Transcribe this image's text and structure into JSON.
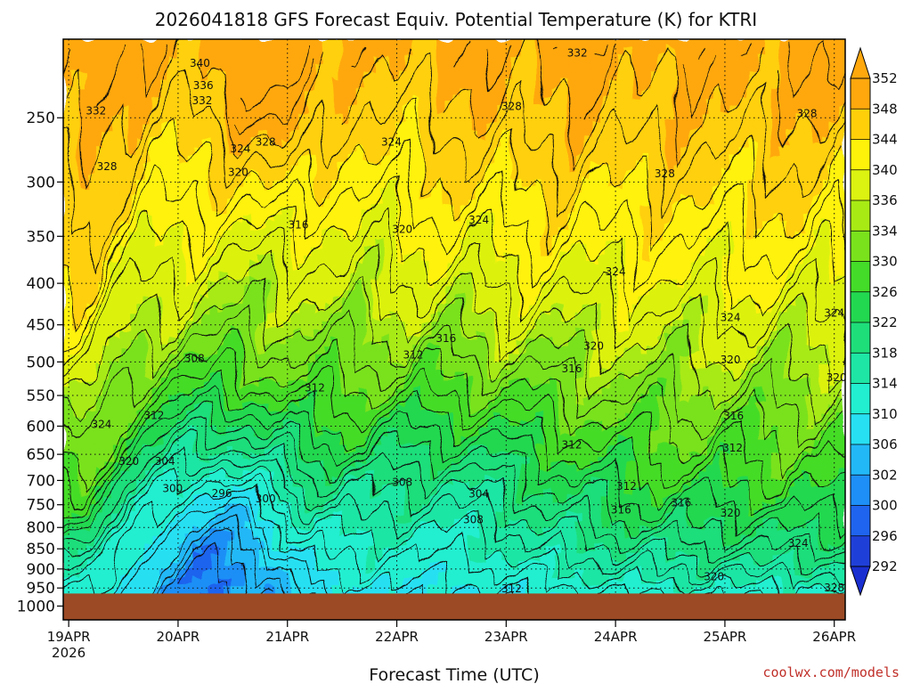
{
  "title": "2026041818 GFS Forecast Equiv. Potential Temperature (K) for KTRI",
  "credit": "coolwx.com/models",
  "colors": {
    "ground": "#9b4a25",
    "palette": [
      "#1f40d8",
      "#1f64ee",
      "#1e8ff6",
      "#22b8f7",
      "#27e0f2",
      "#22efd0",
      "#1ee6a4",
      "#1ede7a",
      "#22d850",
      "#44dc28",
      "#7ae21c",
      "#a8ea14",
      "#dcf210",
      "#fff20a",
      "#ffd00a",
      "#ffa80e"
    ]
  },
  "chart_data": {
    "type": "heatmap",
    "title": "2026041818 GFS Forecast Equiv. Potential Temperature (K) for KTRI",
    "xlabel": "Forecast Time (UTC)",
    "ylabel": "",
    "x_ticks": [
      {
        "label": "19APR",
        "label2": "2026",
        "day": 0
      },
      {
        "label": "20APR",
        "day": 1
      },
      {
        "label": "21APR",
        "day": 2
      },
      {
        "label": "22APR",
        "day": 3
      },
      {
        "label": "23APR",
        "day": 4
      },
      {
        "label": "24APR",
        "day": 5
      },
      {
        "label": "25APR",
        "day": 6
      },
      {
        "label": "26APR",
        "day": 7
      }
    ],
    "xlim_days": [
      -0.05,
      7.1
    ],
    "y_ticks": [
      250,
      300,
      350,
      400,
      450,
      500,
      550,
      600,
      650,
      700,
      750,
      800,
      850,
      900,
      950,
      1000
    ],
    "ylim_hpa": [
      200,
      1040
    ],
    "y_scale": "log",
    "ground_pressure_hpa": 965,
    "grid": "dotted",
    "colorbar": {
      "levels": [
        292,
        296,
        300,
        302,
        306,
        310,
        314,
        318,
        322,
        326,
        330,
        334,
        336,
        340,
        344,
        348,
        352
      ],
      "labels": [
        "352",
        "348",
        "344",
        "340",
        "336",
        "334",
        "330",
        "326",
        "322",
        "318",
        "314",
        "310",
        "306",
        "302",
        "300",
        "296",
        "292"
      ]
    },
    "contour_labels": [
      {
        "text": "340",
        "day": 1.2,
        "p": 214
      },
      {
        "text": "336",
        "day": 1.23,
        "p": 228
      },
      {
        "text": "332",
        "day": 1.22,
        "p": 238
      },
      {
        "text": "332",
        "day": 0.25,
        "p": 245
      },
      {
        "text": "328",
        "day": 1.8,
        "p": 268
      },
      {
        "text": "324",
        "day": 1.57,
        "p": 273
      },
      {
        "text": "328",
        "day": 0.35,
        "p": 287
      },
      {
        "text": "320",
        "day": 1.55,
        "p": 292
      },
      {
        "text": "332",
        "day": 4.65,
        "p": 208
      },
      {
        "text": "328",
        "day": 4.05,
        "p": 242
      },
      {
        "text": "324",
        "day": 2.95,
        "p": 268
      },
      {
        "text": "328",
        "day": 6.75,
        "p": 247
      },
      {
        "text": "328",
        "day": 5.45,
        "p": 293
      },
      {
        "text": "316",
        "day": 2.1,
        "p": 339
      },
      {
        "text": "320",
        "day": 3.05,
        "p": 343
      },
      {
        "text": "324",
        "day": 3.75,
        "p": 334
      },
      {
        "text": "324",
        "day": 5.0,
        "p": 387
      },
      {
        "text": "324",
        "day": 6.05,
        "p": 441
      },
      {
        "text": "324",
        "day": 7.0,
        "p": 435
      },
      {
        "text": "316",
        "day": 3.45,
        "p": 468
      },
      {
        "text": "320",
        "day": 4.8,
        "p": 478
      },
      {
        "text": "308",
        "day": 1.15,
        "p": 495
      },
      {
        "text": "312",
        "day": 3.15,
        "p": 490
      },
      {
        "text": "316",
        "day": 4.6,
        "p": 510
      },
      {
        "text": "320",
        "day": 6.05,
        "p": 497
      },
      {
        "text": "320",
        "day": 7.02,
        "p": 523
      },
      {
        "text": "312",
        "day": 2.25,
        "p": 538
      },
      {
        "text": "312",
        "day": 0.78,
        "p": 582
      },
      {
        "text": "316",
        "day": 6.08,
        "p": 583
      },
      {
        "text": "324",
        "day": 0.3,
        "p": 597
      },
      {
        "text": "312",
        "day": 4.6,
        "p": 633
      },
      {
        "text": "312",
        "day": 6.07,
        "p": 638
      },
      {
        "text": "320",
        "day": 0.55,
        "p": 663
      },
      {
        "text": "304",
        "day": 0.88,
        "p": 663
      },
      {
        "text": "300",
        "day": 0.95,
        "p": 716
      },
      {
        "text": "296",
        "day": 1.4,
        "p": 726
      },
      {
        "text": "300",
        "day": 1.8,
        "p": 737
      },
      {
        "text": "308",
        "day": 3.05,
        "p": 704
      },
      {
        "text": "304",
        "day": 3.75,
        "p": 727
      },
      {
        "text": "312",
        "day": 5.1,
        "p": 712
      },
      {
        "text": "308",
        "day": 3.7,
        "p": 783
      },
      {
        "text": "316",
        "day": 5.05,
        "p": 761
      },
      {
        "text": "316",
        "day": 5.6,
        "p": 746
      },
      {
        "text": "320",
        "day": 6.05,
        "p": 768
      },
      {
        "text": "324",
        "day": 6.67,
        "p": 837
      },
      {
        "text": "320",
        "day": 5.9,
        "p": 920
      },
      {
        "text": "312",
        "day": 4.05,
        "p": 952
      },
      {
        "text": "328",
        "day": 7.0,
        "p": 950
      }
    ]
  }
}
